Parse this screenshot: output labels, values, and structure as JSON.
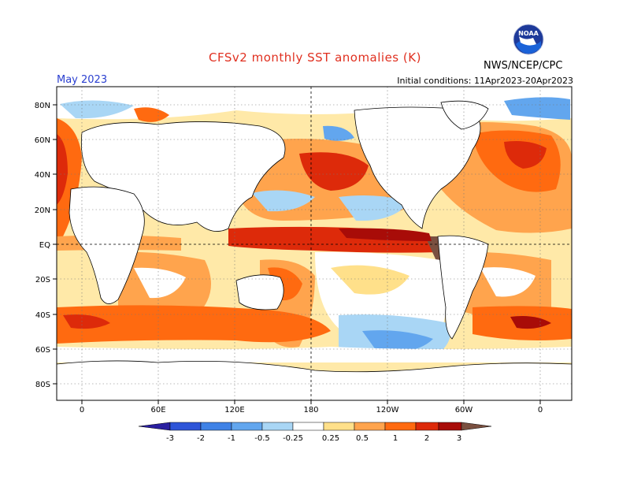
{
  "header": {
    "title": "CFSv2 monthly SST anomalies (K)",
    "valid_month": "May 2023",
    "initial_conditions": "Initial conditions: 11Apr2023-20Apr2023",
    "agency": "NWS/NCEP/CPC",
    "logo_text": "NOAA"
  },
  "axes": {
    "lat_labels": [
      "80N",
      "60N",
      "40N",
      "20N",
      "EQ",
      "20S",
      "40S",
      "60S",
      "80S"
    ],
    "lon_labels": [
      "0",
      "60E",
      "120E",
      "180",
      "120W",
      "60W",
      "0"
    ]
  },
  "colorbar": {
    "labels": [
      "-3",
      "-2",
      "-1",
      "-0.5",
      "-0.25",
      "0.25",
      "0.5",
      "1",
      "2",
      "3"
    ],
    "colors": [
      "#2a1fa0",
      "#2e55d8",
      "#3f82e6",
      "#62a6ee",
      "#a9d6f5",
      "#ffffff",
      "#ffe08a",
      "#ffa44d",
      "#ff6a10",
      "#dd2a0a",
      "#a80c08",
      "#7a5040"
    ]
  },
  "colors": {
    "title": "#e03020",
    "valid_month": "#2a3fd0",
    "land": "#ffffff",
    "coast": "#000000"
  }
}
